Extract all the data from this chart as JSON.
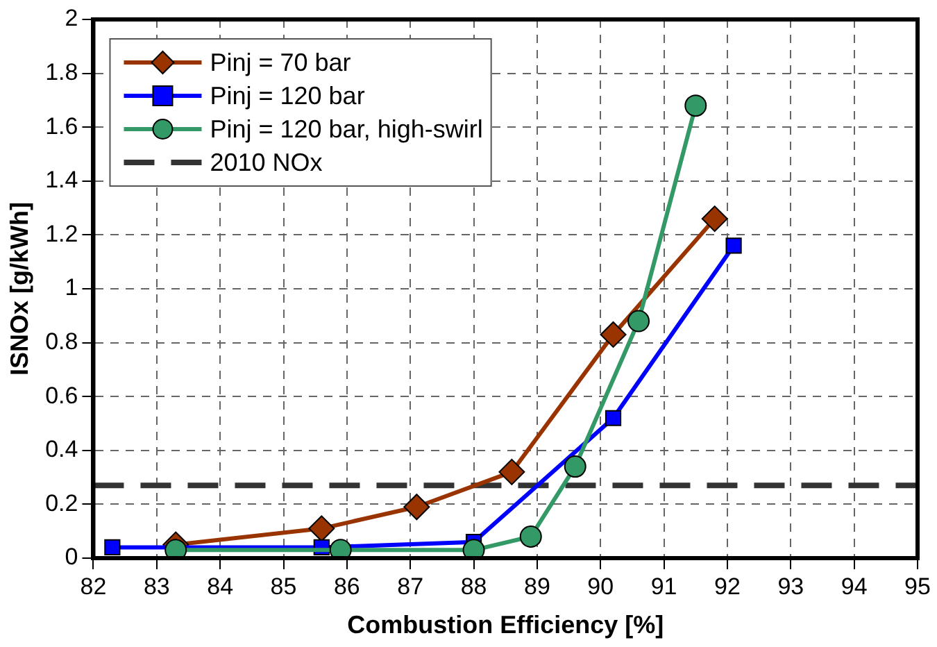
{
  "chart_data": {
    "type": "line",
    "xlabel": "Combustion Efficiency [%]",
    "ylabel": "ISNOx [g/kWh]",
    "xlim": [
      82,
      95
    ],
    "ylim": [
      0,
      2
    ],
    "xticks": [
      82,
      83,
      84,
      85,
      86,
      87,
      88,
      89,
      90,
      91,
      92,
      93,
      94,
      95
    ],
    "yticks": [
      0,
      0.2,
      0.4,
      0.6,
      0.8,
      1,
      1.2,
      1.4,
      1.6,
      1.8,
      2
    ],
    "grid": true,
    "legend": "top left",
    "series": [
      {
        "name": "Pinj = 70 bar",
        "color": "#993300",
        "marker": "diamond",
        "x": [
          83.3,
          85.6,
          87.1,
          88.6,
          90.2,
          91.8
        ],
        "values": [
          0.05,
          0.11,
          0.19,
          0.32,
          0.83,
          1.26
        ]
      },
      {
        "name": "Pinj = 120 bar",
        "color": "#0000ff",
        "marker": "square",
        "x": [
          82.3,
          85.6,
          88,
          90.2,
          92.1
        ],
        "values": [
          0.04,
          0.04,
          0.06,
          0.52,
          1.16
        ]
      },
      {
        "name": "Pinj = 120 bar, high-swirl",
        "color": "#339966",
        "marker": "circle",
        "x": [
          83.3,
          85.9,
          88,
          88.9,
          89.6,
          90.6,
          91.5
        ],
        "values": [
          0.03,
          0.03,
          0.03,
          0.08,
          0.34,
          0.88,
          1.68
        ]
      }
    ],
    "ref_lines": [
      {
        "axis": "y",
        "value": 0.27,
        "label": "2010 NOx",
        "color": "#333333",
        "line_style": "dashed"
      }
    ]
  }
}
